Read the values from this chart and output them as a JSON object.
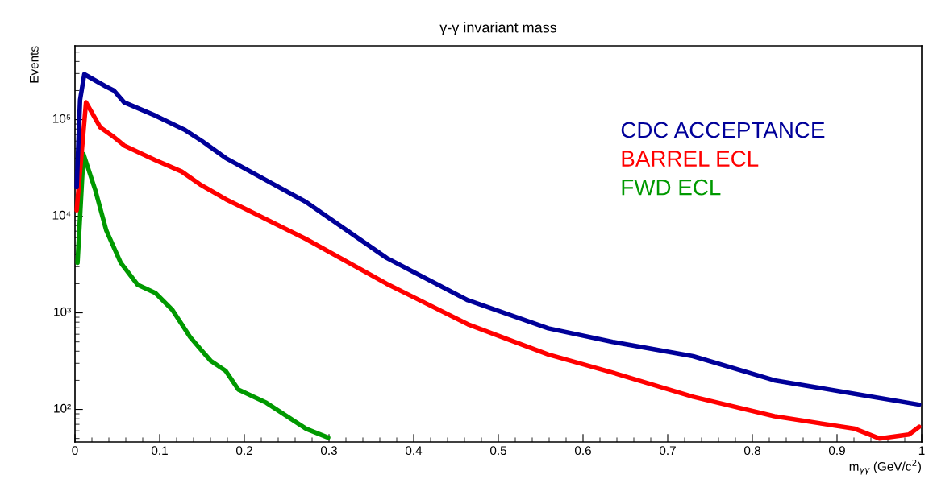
{
  "chart_data": {
    "type": "line",
    "title": "γ-γ invariant mass",
    "xlabel": "m$_{γγ}$ (GeV/c$^{2}$)",
    "ylabel": "Events",
    "xlim": [
      0,
      1
    ],
    "xticks": [
      0,
      0.1,
      0.2,
      0.3,
      0.4,
      0.5,
      0.6,
      0.7,
      0.8,
      0.9,
      1
    ],
    "ylim": [
      46,
      580000
    ],
    "log": "y",
    "yticks": [
      {
        "value": 100,
        "label": "10²"
      },
      {
        "value": 1000,
        "label": "10³"
      },
      {
        "value": 10000,
        "label": "10⁴"
      },
      {
        "value": 100000,
        "label": "10⁵"
      }
    ],
    "grid": false,
    "legend": "top right",
    "marker": "none",
    "line_style": "solid",
    "series": [
      {
        "name": "CDC ACCEPTANCE",
        "color": "#000099",
        "x": [
          0.002,
          0.006,
          0.011,
          0.037,
          0.046,
          0.058,
          0.095,
          0.129,
          0.15,
          0.178,
          0.273,
          0.368,
          0.464,
          0.559,
          0.635,
          0.73,
          0.826,
          0.921,
          0.997
        ],
        "values": [
          20000,
          160000,
          295000,
          219000,
          200000,
          151000,
          110000,
          79000,
          60000,
          40000,
          14000,
          3700,
          1350,
          690,
          500,
          355,
          200,
          145,
          112
        ]
      },
      {
        "name": "BARREL ECL",
        "color": "#ff0000",
        "x": [
          0.002,
          0.013,
          0.03,
          0.044,
          0.058,
          0.095,
          0.126,
          0.149,
          0.178,
          0.273,
          0.368,
          0.464,
          0.559,
          0.635,
          0.73,
          0.826,
          0.921,
          0.95,
          0.985,
          0.997
        ],
        "values": [
          11500,
          151000,
          83000,
          68000,
          54000,
          38000,
          29000,
          21000,
          15000,
          5800,
          2000,
          760,
          370,
          240,
          135,
          85,
          63,
          50,
          55,
          66
        ]
      },
      {
        "name": "FWD ECL",
        "color": "#009900",
        "x": [
          0.003,
          0.01,
          0.024,
          0.037,
          0.054,
          0.074,
          0.095,
          0.115,
          0.136,
          0.16,
          0.178,
          0.193,
          0.226,
          0.273,
          0.299
        ],
        "values": [
          3300,
          44000,
          18600,
          7100,
          3300,
          1950,
          1600,
          1070,
          560,
          320,
          250,
          160,
          117,
          63,
          51
        ]
      }
    ]
  }
}
